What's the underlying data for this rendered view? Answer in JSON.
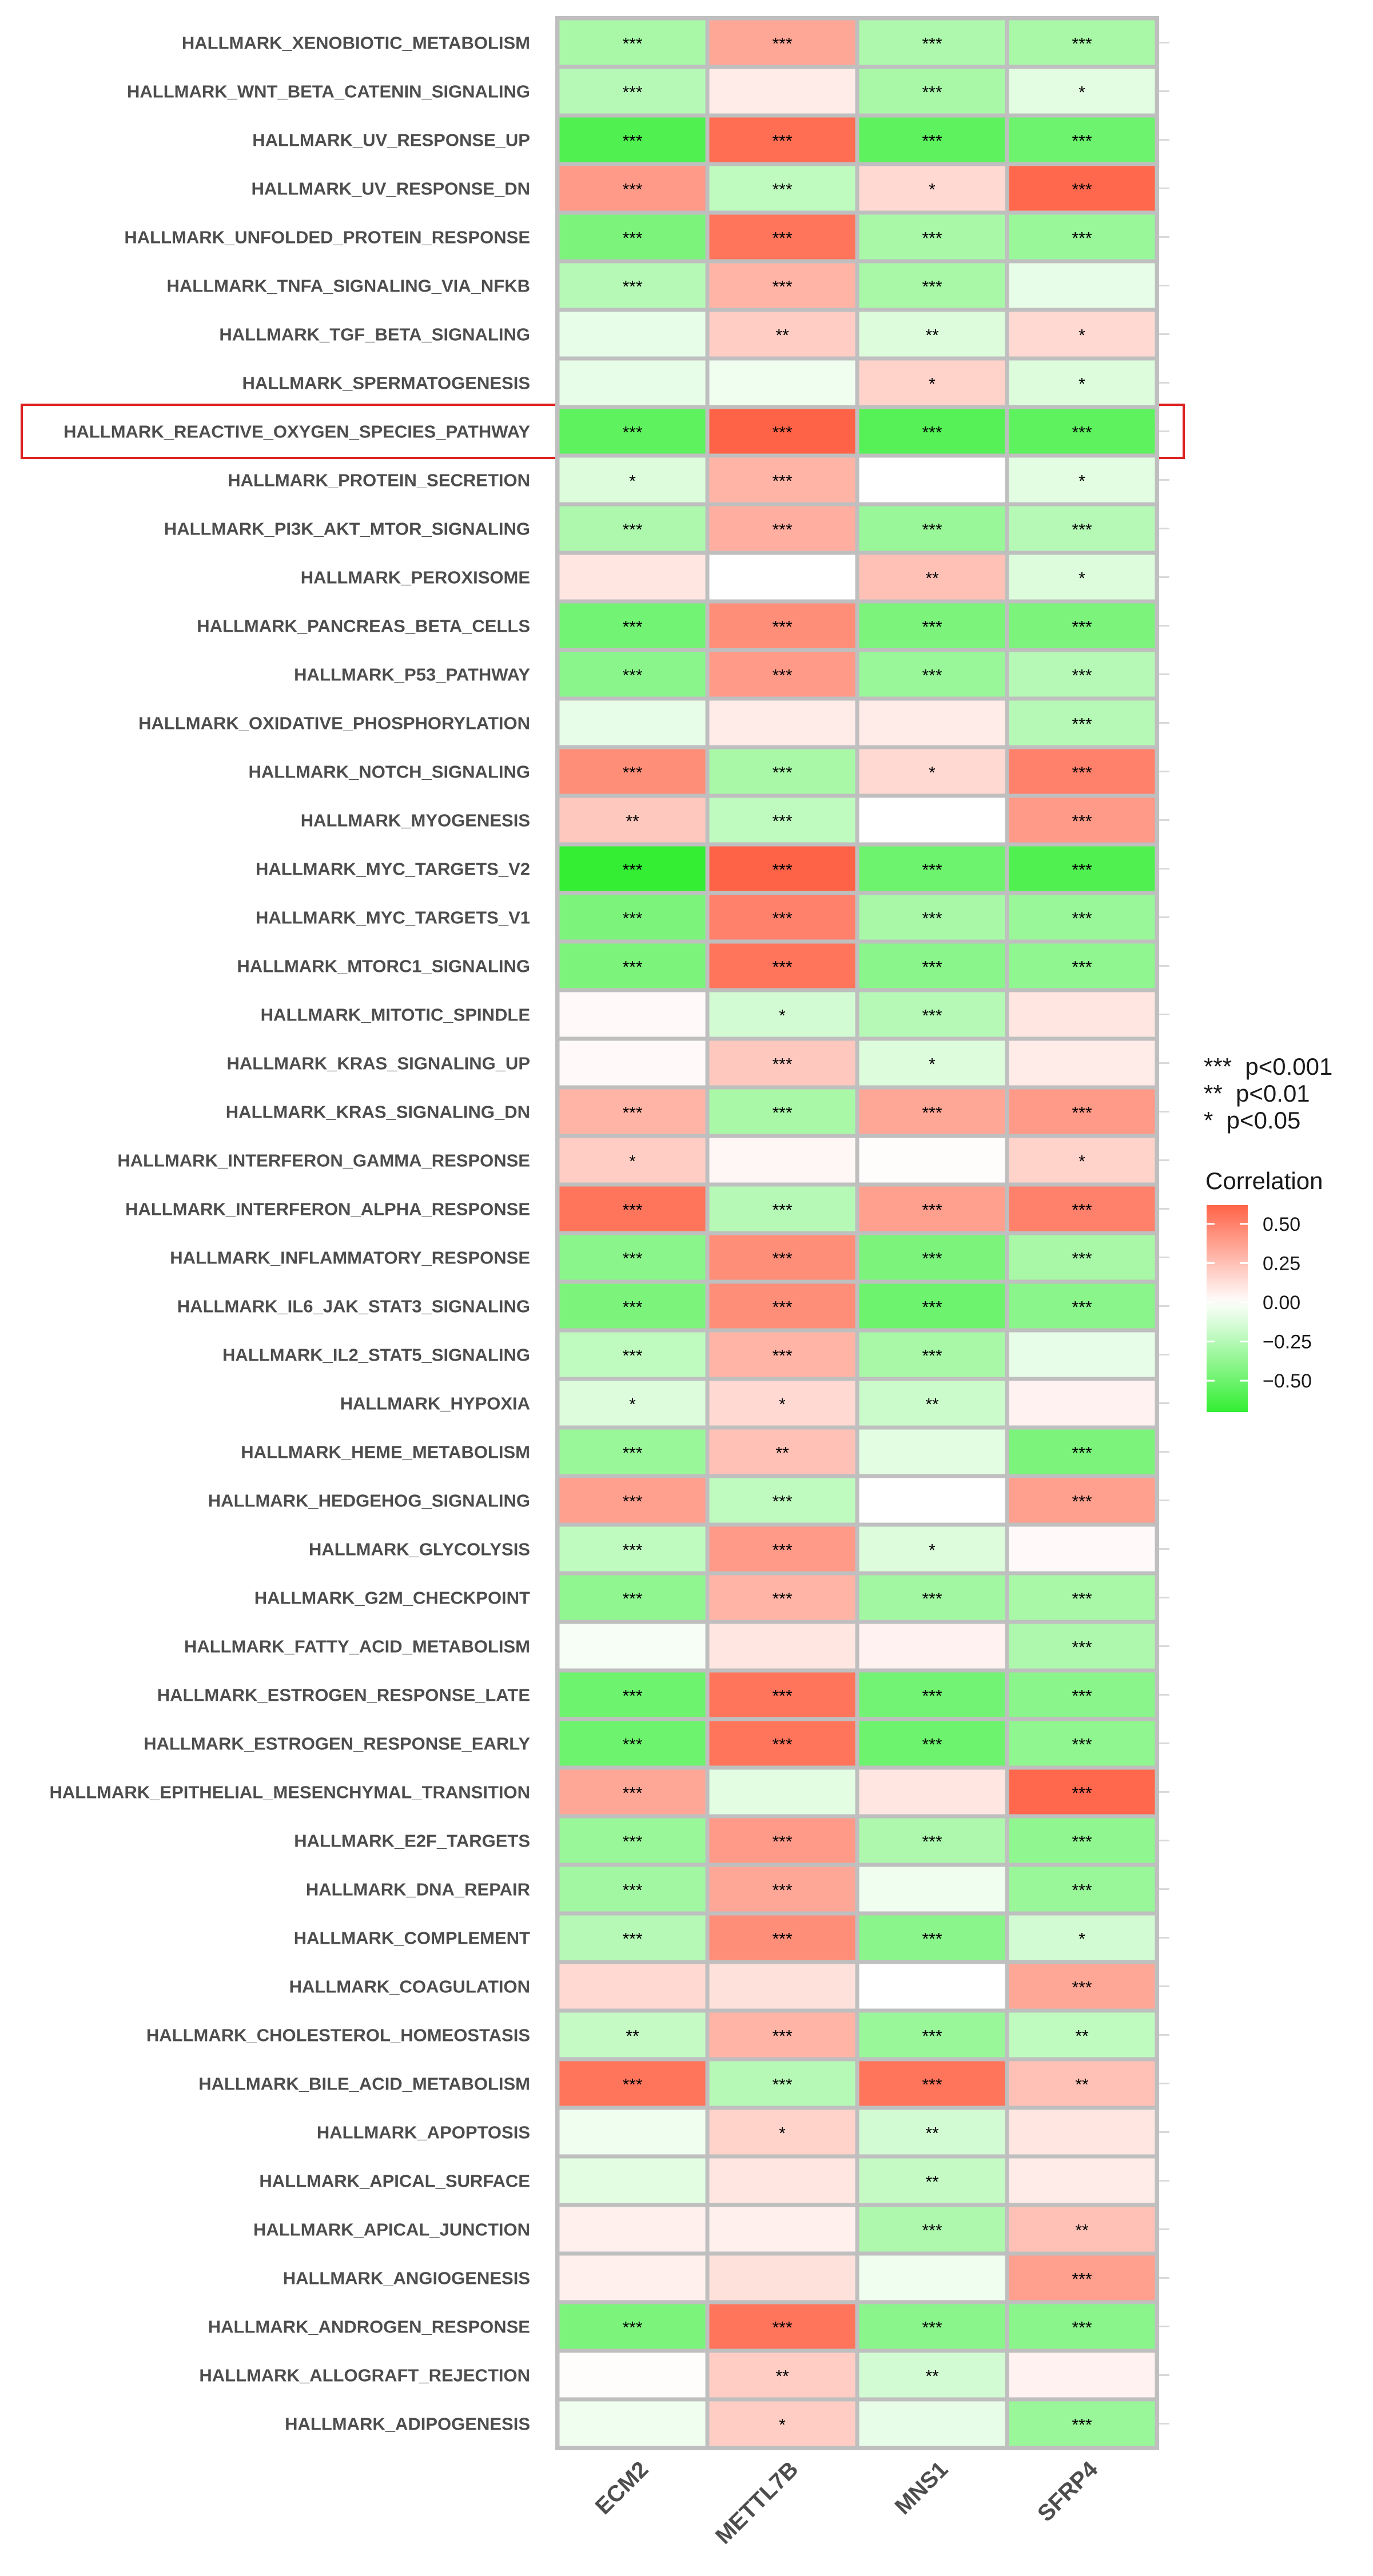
{
  "chart_data": {
    "type": "heatmap",
    "columns": [
      "ECM2",
      "METTL7B",
      "MNS1",
      "SFRP4"
    ],
    "rows": [
      {
        "label": "HALLMARK_XENOBIOTIC_METABOLISM",
        "values": [
          -0.3,
          0.35,
          -0.28,
          -0.3
        ],
        "sig": [
          "***",
          "***",
          "***",
          "***"
        ]
      },
      {
        "label": "HALLMARK_WNT_BETA_CATENIN_SIGNALING",
        "values": [
          -0.25,
          0.08,
          -0.3,
          -0.1
        ],
        "sig": [
          "***",
          "",
          "***",
          "*"
        ]
      },
      {
        "label": "HALLMARK_UV_RESPONSE_UP",
        "values": [
          -0.6,
          0.58,
          -0.55,
          -0.5
        ],
        "sig": [
          "***",
          "***",
          "***",
          "***"
        ]
      },
      {
        "label": "HALLMARK_UV_RESPONSE_DN",
        "values": [
          0.4,
          -0.22,
          0.15,
          0.6
        ],
        "sig": [
          "***",
          "***",
          "*",
          "***"
        ]
      },
      {
        "label": "HALLMARK_UNFOLDED_PROTEIN_RESPONSE",
        "values": [
          -0.45,
          0.55,
          -0.3,
          -0.35
        ],
        "sig": [
          "***",
          "***",
          "***",
          "***"
        ]
      },
      {
        "label": "HALLMARK_TNFA_SIGNALING_VIA_NFKB",
        "values": [
          -0.25,
          0.3,
          -0.3,
          -0.08
        ],
        "sig": [
          "***",
          "***",
          "***",
          ""
        ]
      },
      {
        "label": "HALLMARK_TGF_BETA_SIGNALING",
        "values": [
          -0.08,
          0.2,
          -0.12,
          0.15
        ],
        "sig": [
          "",
          "**",
          "**",
          "*"
        ]
      },
      {
        "label": "HALLMARK_SPERMATOGENESIS",
        "values": [
          -0.08,
          -0.05,
          0.18,
          -0.12
        ],
        "sig": [
          "",
          "",
          "*",
          "*"
        ]
      },
      {
        "label": "HALLMARK_REACTIVE_OXYGEN_SPECIES_PATHWAY",
        "values": [
          -0.55,
          0.62,
          -0.58,
          -0.55
        ],
        "sig": [
          "***",
          "***",
          "***",
          "***"
        ],
        "highlight": true
      },
      {
        "label": "HALLMARK_PROTEIN_SECRETION",
        "values": [
          -0.12,
          0.3,
          0.0,
          -0.1
        ],
        "sig": [
          "*",
          "***",
          "",
          "*"
        ]
      },
      {
        "label": "HALLMARK_PI3K_AKT_MTOR_SIGNALING",
        "values": [
          -0.28,
          0.32,
          -0.35,
          -0.25
        ],
        "sig": [
          "***",
          "***",
          "***",
          "***"
        ]
      },
      {
        "label": "HALLMARK_PEROXISOME",
        "values": [
          0.1,
          0.0,
          0.25,
          -0.12
        ],
        "sig": [
          "",
          "",
          "**",
          "*"
        ]
      },
      {
        "label": "HALLMARK_PANCREAS_BETA_CELLS",
        "values": [
          -0.48,
          0.45,
          -0.45,
          -0.45
        ],
        "sig": [
          "***",
          "***",
          "***",
          "***"
        ]
      },
      {
        "label": "HALLMARK_P53_PATHWAY",
        "values": [
          -0.4,
          0.4,
          -0.35,
          -0.25
        ],
        "sig": [
          "***",
          "***",
          "***",
          "***"
        ]
      },
      {
        "label": "HALLMARK_OXIDATIVE_PHOSPHORYLATION",
        "values": [
          -0.08,
          0.08,
          0.08,
          -0.25
        ],
        "sig": [
          "",
          "",
          "",
          "***"
        ]
      },
      {
        "label": "HALLMARK_NOTCH_SIGNALING",
        "values": [
          0.45,
          -0.3,
          0.15,
          0.5
        ],
        "sig": [
          "***",
          "***",
          "*",
          "***"
        ]
      },
      {
        "label": "HALLMARK_MYOGENESIS",
        "values": [
          0.22,
          -0.22,
          0.0,
          0.4
        ],
        "sig": [
          "**",
          "***",
          "",
          "***"
        ]
      },
      {
        "label": "HALLMARK_MYC_TARGETS_V2",
        "values": [
          -0.7,
          0.62,
          -0.5,
          -0.6
        ],
        "sig": [
          "***",
          "***",
          "***",
          "***"
        ]
      },
      {
        "label": "HALLMARK_MYC_TARGETS_V1",
        "values": [
          -0.45,
          0.5,
          -0.3,
          -0.35
        ],
        "sig": [
          "***",
          "***",
          "***",
          "***"
        ]
      },
      {
        "label": "HALLMARK_MTORC1_SIGNALING",
        "values": [
          -0.45,
          0.55,
          -0.4,
          -0.38
        ],
        "sig": [
          "***",
          "***",
          "***",
          "***"
        ]
      },
      {
        "label": "HALLMARK_MITOTIC_SPINDLE",
        "values": [
          0.02,
          -0.15,
          -0.25,
          0.1
        ],
        "sig": [
          "",
          "*",
          "***",
          ""
        ]
      },
      {
        "label": "HALLMARK_KRAS_SIGNALING_UP",
        "values": [
          0.02,
          0.22,
          -0.12,
          0.08
        ],
        "sig": [
          "",
          "***",
          "*",
          ""
        ]
      },
      {
        "label": "HALLMARK_KRAS_SIGNALING_DN",
        "values": [
          0.3,
          -0.3,
          0.35,
          0.4
        ],
        "sig": [
          "***",
          "***",
          "***",
          "***"
        ]
      },
      {
        "label": "HALLMARK_INTERFERON_GAMMA_RESPONSE",
        "values": [
          0.2,
          0.03,
          0.01,
          0.18
        ],
        "sig": [
          "*",
          "",
          "",
          "*"
        ]
      },
      {
        "label": "HALLMARK_INTERFERON_ALPHA_RESPONSE",
        "values": [
          0.55,
          -0.25,
          0.38,
          0.5
        ],
        "sig": [
          "***",
          "***",
          "***",
          "***"
        ]
      },
      {
        "label": "HALLMARK_INFLAMMATORY_RESPONSE",
        "values": [
          -0.4,
          0.45,
          -0.45,
          -0.3
        ],
        "sig": [
          "***",
          "***",
          "***",
          "***"
        ]
      },
      {
        "label": "HALLMARK_IL6_JAK_STAT3_SIGNALING",
        "values": [
          -0.45,
          0.45,
          -0.5,
          -0.4
        ],
        "sig": [
          "***",
          "***",
          "***",
          "***"
        ]
      },
      {
        "label": "HALLMARK_IL2_STAT5_SIGNALING",
        "values": [
          -0.22,
          0.3,
          -0.3,
          -0.08
        ],
        "sig": [
          "***",
          "***",
          "***",
          ""
        ]
      },
      {
        "label": "HALLMARK_HYPOXIA",
        "values": [
          -0.12,
          0.15,
          -0.18,
          0.05
        ],
        "sig": [
          "*",
          "*",
          "**",
          ""
        ]
      },
      {
        "label": "HALLMARK_HEME_METABOLISM",
        "values": [
          -0.35,
          0.25,
          -0.1,
          -0.45
        ],
        "sig": [
          "***",
          "**",
          "",
          "***"
        ]
      },
      {
        "label": "HALLMARK_HEDGEHOG_SIGNALING",
        "values": [
          0.38,
          -0.22,
          0.0,
          0.38
        ],
        "sig": [
          "***",
          "***",
          "",
          "***"
        ]
      },
      {
        "label": "HALLMARK_GLYCOLYSIS",
        "values": [
          -0.22,
          0.4,
          -0.12,
          0.02
        ],
        "sig": [
          "***",
          "***",
          "*",
          ""
        ]
      },
      {
        "label": "HALLMARK_G2M_CHECKPOINT",
        "values": [
          -0.38,
          0.3,
          -0.32,
          -0.3
        ],
        "sig": [
          "***",
          "***",
          "***",
          "***"
        ]
      },
      {
        "label": "HALLMARK_FATTY_ACID_METABOLISM",
        "values": [
          -0.03,
          0.1,
          0.05,
          -0.28
        ],
        "sig": [
          "",
          "",
          "",
          "***"
        ]
      },
      {
        "label": "HALLMARK_ESTROGEN_RESPONSE_LATE",
        "values": [
          -0.5,
          0.55,
          -0.48,
          -0.4
        ],
        "sig": [
          "***",
          "***",
          "***",
          "***"
        ]
      },
      {
        "label": "HALLMARK_ESTROGEN_RESPONSE_EARLY",
        "values": [
          -0.5,
          0.55,
          -0.5,
          -0.38
        ],
        "sig": [
          "***",
          "***",
          "***",
          "***"
        ]
      },
      {
        "label": "HALLMARK_EPITHELIAL_MESENCHYMAL_TRANSITION",
        "values": [
          0.35,
          -0.1,
          0.1,
          0.6
        ],
        "sig": [
          "***",
          "",
          "",
          "***"
        ]
      },
      {
        "label": "HALLMARK_E2F_TARGETS",
        "values": [
          -0.35,
          0.4,
          -0.28,
          -0.38
        ],
        "sig": [
          "***",
          "***",
          "***",
          "***"
        ]
      },
      {
        "label": "HALLMARK_DNA_REPAIR",
        "values": [
          -0.32,
          0.35,
          -0.05,
          -0.35
        ],
        "sig": [
          "***",
          "***",
          "",
          "***"
        ]
      },
      {
        "label": "HALLMARK_COMPLEMENT",
        "values": [
          -0.25,
          0.45,
          -0.4,
          -0.15
        ],
        "sig": [
          "***",
          "***",
          "***",
          "*"
        ]
      },
      {
        "label": "HALLMARK_COAGULATION",
        "values": [
          0.15,
          0.12,
          0.0,
          0.35
        ],
        "sig": [
          "",
          "",
          "",
          "***"
        ]
      },
      {
        "label": "HALLMARK_CHOLESTEROL_HOMEOSTASIS",
        "values": [
          -0.2,
          0.3,
          -0.35,
          -0.22
        ],
        "sig": [
          "**",
          "***",
          "***",
          "**"
        ]
      },
      {
        "label": "HALLMARK_BILE_ACID_METABOLISM",
        "values": [
          0.55,
          -0.25,
          0.55,
          0.25
        ],
        "sig": [
          "***",
          "***",
          "***",
          "**"
        ]
      },
      {
        "label": "HALLMARK_APOPTOSIS",
        "values": [
          -0.05,
          0.18,
          -0.15,
          0.1
        ],
        "sig": [
          "",
          "*",
          "**",
          ""
        ]
      },
      {
        "label": "HALLMARK_APICAL_SURFACE",
        "values": [
          -0.1,
          0.1,
          -0.2,
          0.08
        ],
        "sig": [
          "",
          "",
          "**",
          ""
        ]
      },
      {
        "label": "HALLMARK_APICAL_JUNCTION",
        "values": [
          0.06,
          0.06,
          -0.28,
          0.25
        ],
        "sig": [
          "",
          "",
          "***",
          "**"
        ]
      },
      {
        "label": "HALLMARK_ANGIOGENESIS",
        "values": [
          0.06,
          0.12,
          -0.05,
          0.38
        ],
        "sig": [
          "",
          "",
          "",
          "***"
        ]
      },
      {
        "label": "HALLMARK_ANDROGEN_RESPONSE",
        "values": [
          -0.45,
          0.55,
          -0.4,
          -0.4
        ],
        "sig": [
          "***",
          "***",
          "***",
          "***"
        ]
      },
      {
        "label": "HALLMARK_ALLOGRAFT_REJECTION",
        "values": [
          0.01,
          0.2,
          -0.15,
          0.05
        ],
        "sig": [
          "",
          "**",
          "**",
          ""
        ]
      },
      {
        "label": "HALLMARK_ADIPOGENESIS",
        "values": [
          -0.05,
          0.2,
          -0.08,
          -0.35
        ],
        "sig": [
          "",
          "*",
          "",
          "***"
        ]
      }
    ],
    "significance_legend": [
      "***  p<0.001",
      "**  p<0.01",
      "*  p<0.05"
    ],
    "colorbar": {
      "title": "Correlation",
      "ticks": [
        0.5,
        0.25,
        0.0,
        -0.25,
        -0.5
      ],
      "tick_labels": [
        "0.50",
        "0.25",
        "0.00",
        "−0.25",
        "−0.50"
      ],
      "range": [
        -0.7,
        0.62
      ],
      "low_color": "#33ee33",
      "mid_color": "#ffffff",
      "high_color": "#ff6347"
    },
    "highlight_color": "#dd2222",
    "cell_border_color": "#bfbfbf"
  }
}
